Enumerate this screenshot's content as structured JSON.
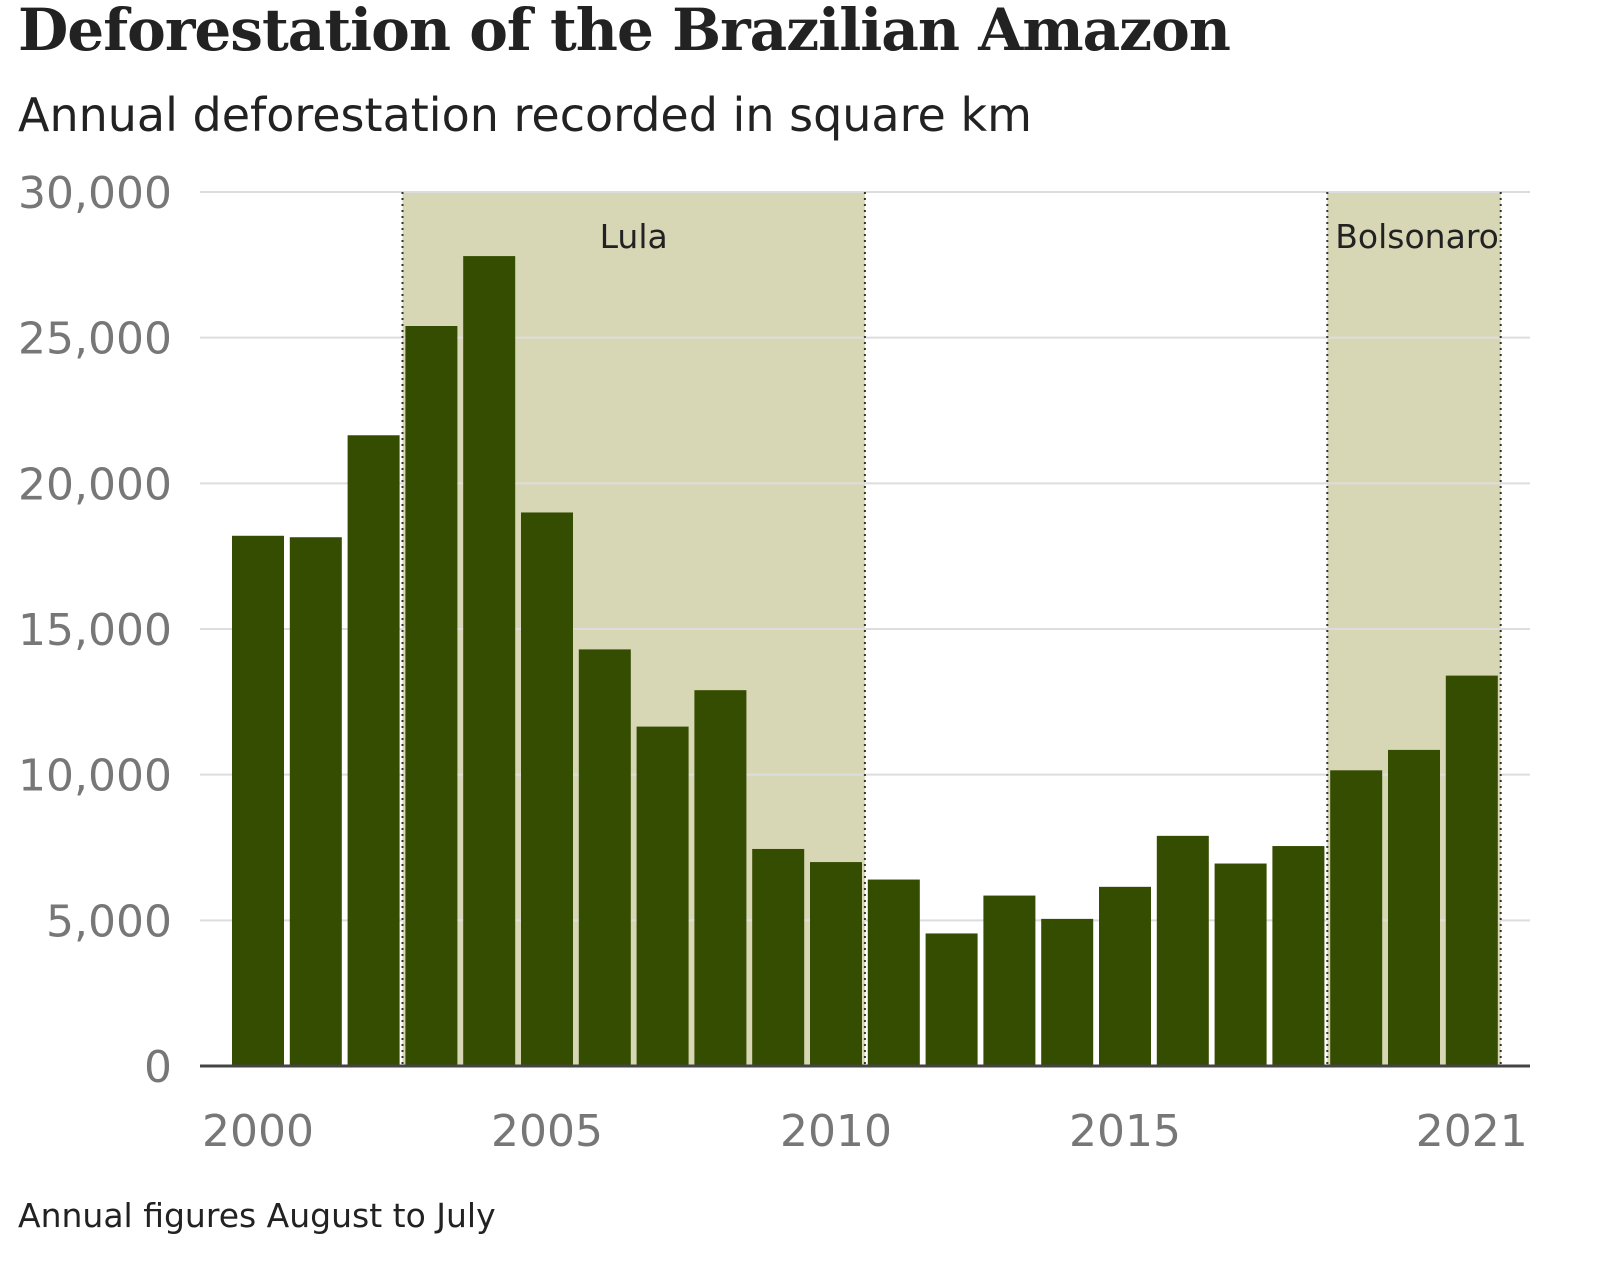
{
  "chart_data": {
    "type": "bar",
    "title": "Deforestation of the Brazilian Amazon",
    "subtitle": "Annual deforestation recorded in square km",
    "footnote": "Annual figures August to July",
    "categories": [
      "2000",
      "2001",
      "2002",
      "2003",
      "2004",
      "2005",
      "2006",
      "2007",
      "2008",
      "2009",
      "2010",
      "2011",
      "2012",
      "2013",
      "2014",
      "2015",
      "2016",
      "2017",
      "2018",
      "2019",
      "2020",
      "2021"
    ],
    "values": [
      18200,
      18150,
      21650,
      25400,
      27800,
      19000,
      14300,
      11650,
      12900,
      7450,
      7000,
      6400,
      4550,
      5850,
      5050,
      6150,
      7900,
      6950,
      7550,
      10150,
      10850,
      13400
    ],
    "ylim": [
      0,
      30000
    ],
    "yticks": [
      0,
      5000,
      10000,
      15000,
      20000,
      25000,
      30000
    ],
    "ytick_labels": [
      "0",
      "5,000",
      "10,000",
      "15,000",
      "20,000",
      "25,000",
      "30,000"
    ],
    "xtick_labels": [
      {
        "label": "2000",
        "index": 0
      },
      {
        "label": "2005",
        "index": 5
      },
      {
        "label": "2010",
        "index": 10
      },
      {
        "label": "2015",
        "index": 15
      },
      {
        "label": "2021",
        "index": 21
      }
    ],
    "grid": true,
    "annotations": [
      {
        "label": "Lula",
        "from_index": 3,
        "to_index": 10
      },
      {
        "label": "Bolsonaro",
        "from_index": 19,
        "to_index": 21
      }
    ],
    "colors": {
      "bar": "#354d00",
      "shade": "#d8d7b5",
      "grid": "#dddddd",
      "axis": "#444444",
      "tick_text": "#777777"
    }
  }
}
